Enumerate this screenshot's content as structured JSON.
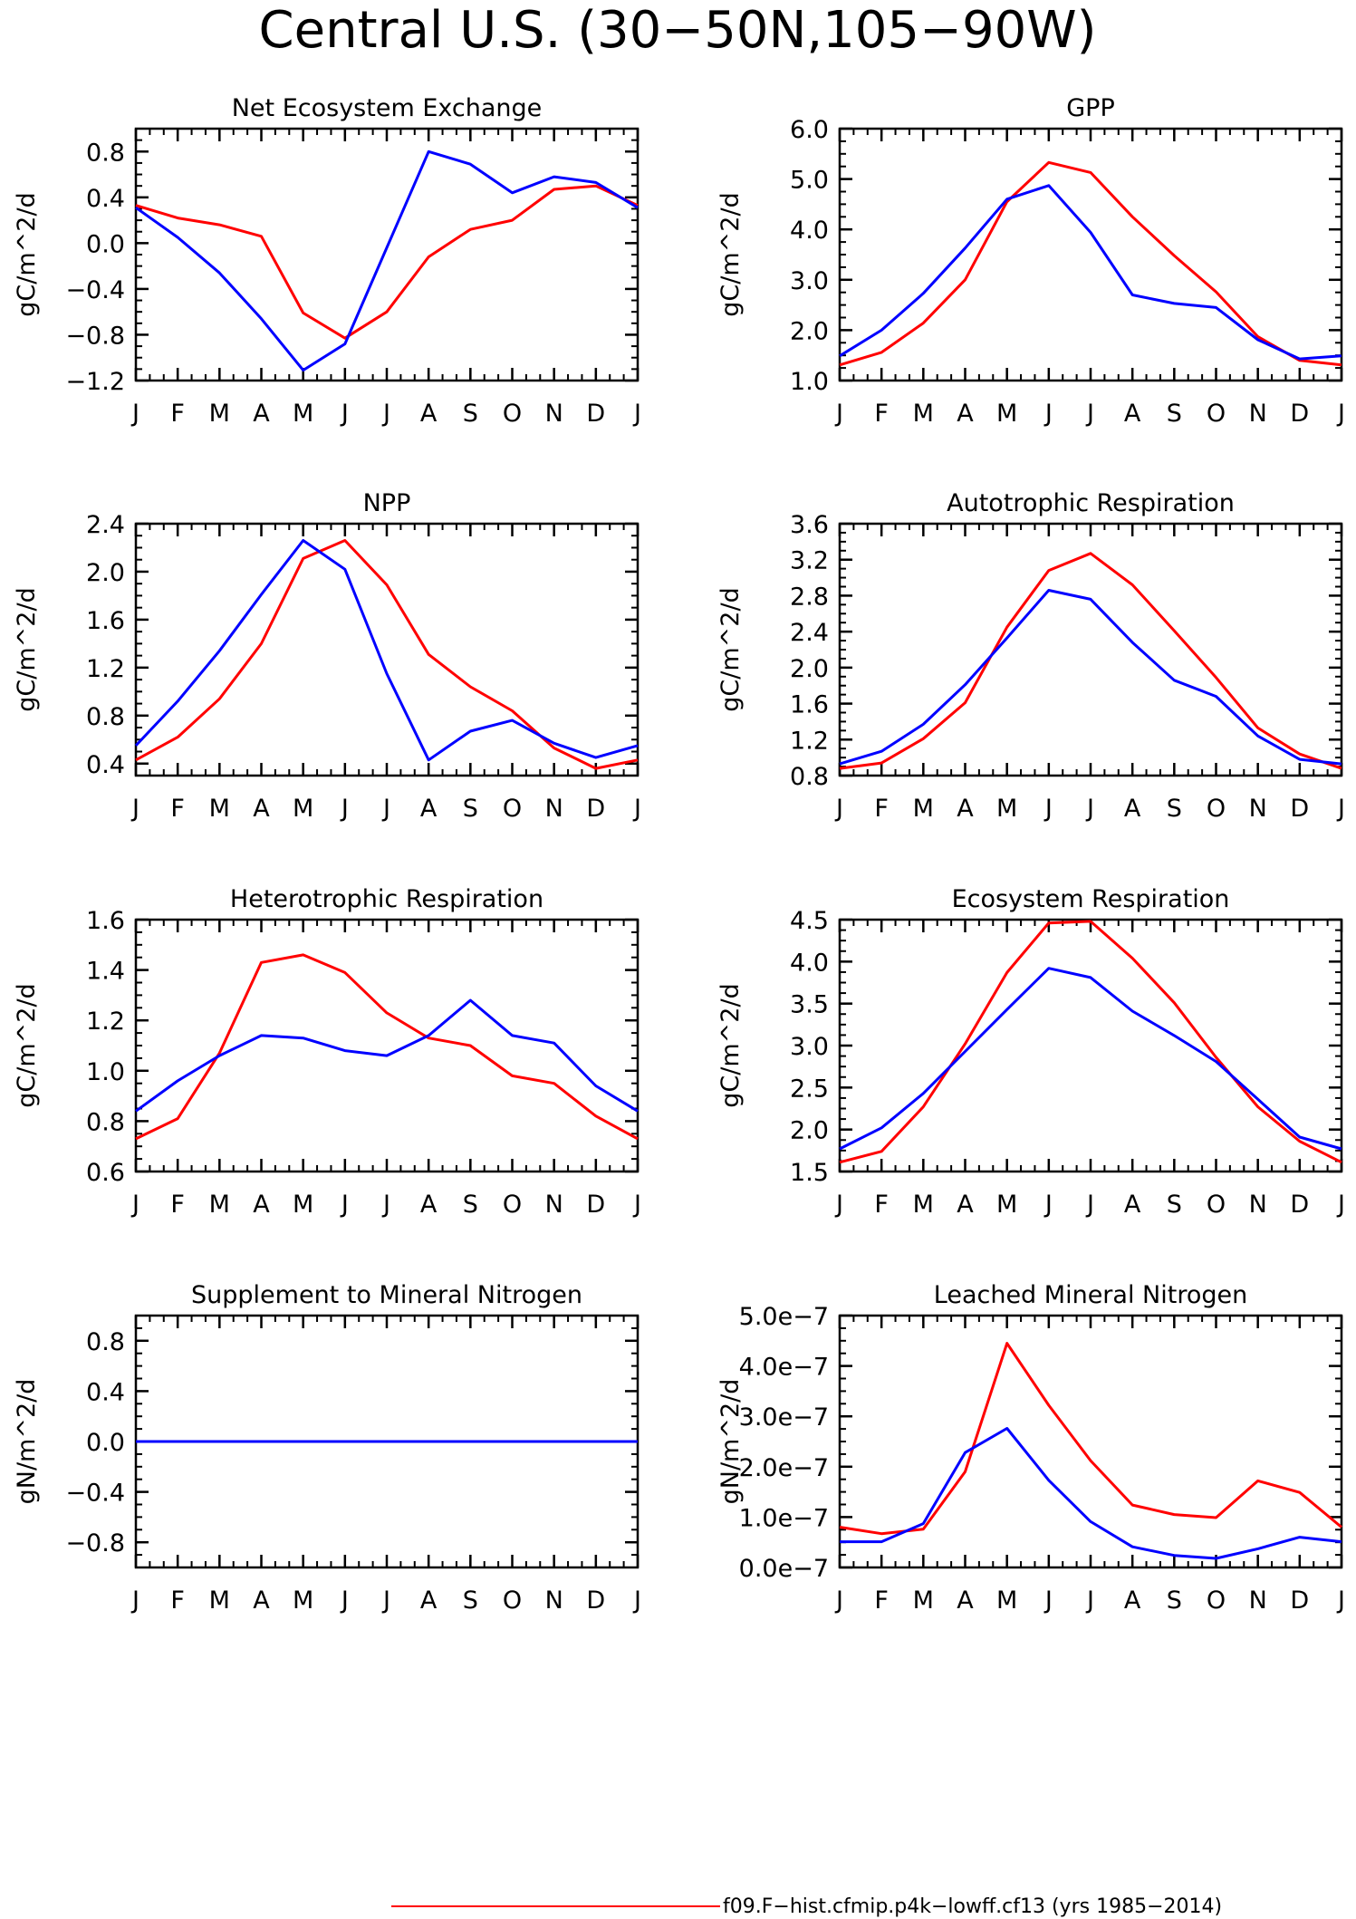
{
  "figure_title": "Central U.S. (30−50N,105−90W)",
  "legend": {
    "entries": [
      {
        "label": "f09.F−hist.cfmip.p4k−lowff.cf13 (yrs 1985−2014)",
        "color": "#ff0000"
      }
    ]
  },
  "colors": {
    "red": "#ff0000",
    "blue": "#0000ff"
  },
  "chart_data": [
    {
      "type": "line",
      "title": "Net Ecosystem Exchange",
      "ylabel": "gC/m^2/d",
      "categories": [
        "J",
        "F",
        "M",
        "A",
        "M",
        "J",
        "J",
        "A",
        "S",
        "O",
        "N",
        "D",
        "J"
      ],
      "ylim": [
        -1.2,
        1.0
      ],
      "yticks": [
        -1.2,
        -0.8,
        -0.4,
        0.0,
        0.4,
        0.8
      ],
      "ytick_labels": [
        "−1.2",
        "−0.8",
        "−0.4",
        "0.0",
        "0.4",
        "0.8"
      ],
      "series": [
        {
          "color": "#ff0000",
          "values": [
            0.33,
            0.22,
            0.16,
            0.06,
            -0.61,
            -0.83,
            -0.6,
            -0.12,
            0.12,
            0.2,
            0.47,
            0.5,
            0.33
          ]
        },
        {
          "color": "#0000ff",
          "values": [
            0.31,
            0.05,
            -0.26,
            -0.66,
            -1.11,
            -0.88,
            -0.04,
            0.8,
            0.69,
            0.44,
            0.58,
            0.53,
            0.31
          ]
        }
      ]
    },
    {
      "type": "line",
      "title": "GPP",
      "ylabel": "gC/m^2/d",
      "categories": [
        "J",
        "F",
        "M",
        "A",
        "M",
        "J",
        "J",
        "A",
        "S",
        "O",
        "N",
        "D",
        "J"
      ],
      "ylim": [
        1.0,
        6.0
      ],
      "yticks": [
        1.0,
        2.0,
        3.0,
        4.0,
        5.0,
        6.0
      ],
      "ytick_labels": [
        "1.0",
        "2.0",
        "3.0",
        "4.0",
        "5.0",
        "6.0"
      ],
      "series": [
        {
          "color": "#ff0000",
          "values": [
            1.31,
            1.56,
            2.14,
            3.0,
            4.55,
            5.33,
            5.13,
            4.25,
            3.48,
            2.76,
            1.87,
            1.4,
            1.31
          ]
        },
        {
          "color": "#0000ff",
          "values": [
            1.49,
            2.0,
            2.73,
            3.63,
            4.6,
            4.87,
            3.94,
            2.7,
            2.53,
            2.45,
            1.81,
            1.43,
            1.49
          ]
        }
      ]
    },
    {
      "type": "line",
      "title": "NPP",
      "ylabel": "gC/m^2/d",
      "categories": [
        "J",
        "F",
        "M",
        "A",
        "M",
        "J",
        "J",
        "A",
        "S",
        "O",
        "N",
        "D",
        "J"
      ],
      "ylim": [
        0.3,
        2.4
      ],
      "yticks": [
        0.4,
        0.8,
        1.2,
        1.6,
        2.0,
        2.4
      ],
      "ytick_labels": [
        "0.4",
        "0.8",
        "1.2",
        "1.6",
        "2.0",
        "2.4"
      ],
      "series": [
        {
          "color": "#ff0000",
          "values": [
            0.43,
            0.62,
            0.94,
            1.4,
            2.11,
            2.26,
            1.89,
            1.31,
            1.04,
            0.84,
            0.53,
            0.36,
            0.43
          ]
        },
        {
          "color": "#0000ff",
          "values": [
            0.55,
            0.92,
            1.34,
            1.81,
            2.26,
            2.02,
            1.15,
            0.43,
            0.67,
            0.76,
            0.57,
            0.45,
            0.55
          ]
        }
      ]
    },
    {
      "type": "line",
      "title": "Autotrophic Respiration",
      "ylabel": "gC/m^2/d",
      "categories": [
        "J",
        "F",
        "M",
        "A",
        "M",
        "J",
        "J",
        "A",
        "S",
        "O",
        "N",
        "D",
        "J"
      ],
      "ylim": [
        0.8,
        3.6
      ],
      "yticks": [
        0.8,
        1.2,
        1.6,
        2.0,
        2.4,
        2.8,
        3.2,
        3.6
      ],
      "ytick_labels": [
        "0.8",
        "1.2",
        "1.6",
        "2.0",
        "2.4",
        "2.8",
        "3.2",
        "3.6"
      ],
      "series": [
        {
          "color": "#ff0000",
          "values": [
            0.88,
            0.94,
            1.21,
            1.61,
            2.45,
            3.08,
            3.27,
            2.92,
            2.41,
            1.89,
            1.33,
            1.04,
            0.88
          ]
        },
        {
          "color": "#0000ff",
          "values": [
            0.93,
            1.07,
            1.37,
            1.81,
            2.33,
            2.86,
            2.76,
            2.28,
            1.86,
            1.68,
            1.24,
            0.98,
            0.93
          ]
        }
      ]
    },
    {
      "type": "line",
      "title": "Heterotrophic Respiration",
      "ylabel": "gC/m^2/d",
      "categories": [
        "J",
        "F",
        "M",
        "A",
        "M",
        "J",
        "J",
        "A",
        "S",
        "O",
        "N",
        "D",
        "J"
      ],
      "ylim": [
        0.6,
        1.6
      ],
      "yticks": [
        0.6,
        0.8,
        1.0,
        1.2,
        1.4,
        1.6
      ],
      "ytick_labels": [
        "0.6",
        "0.8",
        "1.0",
        "1.2",
        "1.4",
        "1.6"
      ],
      "series": [
        {
          "color": "#ff0000",
          "values": [
            0.73,
            0.81,
            1.07,
            1.43,
            1.46,
            1.39,
            1.23,
            1.13,
            1.1,
            0.98,
            0.95,
            0.82,
            0.73
          ]
        },
        {
          "color": "#0000ff",
          "values": [
            0.84,
            0.96,
            1.06,
            1.14,
            1.13,
            1.08,
            1.06,
            1.14,
            1.28,
            1.14,
            1.11,
            0.94,
            0.84
          ]
        }
      ]
    },
    {
      "type": "line",
      "title": "Ecosystem Respiration",
      "ylabel": "gC/m^2/d",
      "categories": [
        "J",
        "F",
        "M",
        "A",
        "M",
        "J",
        "J",
        "A",
        "S",
        "O",
        "N",
        "D",
        "J"
      ],
      "ylim": [
        1.5,
        4.5
      ],
      "yticks": [
        1.5,
        2.0,
        2.5,
        3.0,
        3.5,
        4.0,
        4.5
      ],
      "ytick_labels": [
        "1.5",
        "2.0",
        "2.5",
        "3.0",
        "3.5",
        "4.0",
        "4.5"
      ],
      "series": [
        {
          "color": "#ff0000",
          "values": [
            1.61,
            1.74,
            2.27,
            3.02,
            3.87,
            4.46,
            4.48,
            4.04,
            3.51,
            2.86,
            2.27,
            1.86,
            1.61
          ]
        },
        {
          "color": "#0000ff",
          "values": [
            1.77,
            2.02,
            2.43,
            2.93,
            3.43,
            3.92,
            3.81,
            3.41,
            3.12,
            2.81,
            2.36,
            1.91,
            1.77
          ]
        }
      ]
    },
    {
      "type": "line",
      "title": "Supplement to Mineral Nitrogen",
      "ylabel": "gN/m^2/d",
      "categories": [
        "J",
        "F",
        "M",
        "A",
        "M",
        "J",
        "J",
        "A",
        "S",
        "O",
        "N",
        "D",
        "J"
      ],
      "ylim": [
        -1.0,
        1.0
      ],
      "yticks": [
        -0.8,
        -0.4,
        0.0,
        0.4,
        0.8
      ],
      "ytick_labels": [
        "−0.8",
        "−0.4",
        "0.0",
        "0.4",
        "0.8"
      ],
      "series": [
        {
          "color": "#ff0000",
          "values": [
            0,
            0,
            0,
            0,
            0,
            0,
            0,
            0,
            0,
            0,
            0,
            0,
            0
          ]
        },
        {
          "color": "#0000ff",
          "values": [
            0,
            0,
            0,
            0,
            0,
            0,
            0,
            0,
            0,
            0,
            0,
            0,
            0
          ]
        }
      ]
    },
    {
      "type": "line",
      "title": "Leached Mineral Nitrogen",
      "ylabel": "gN/m^2/d",
      "categories": [
        "J",
        "F",
        "M",
        "A",
        "M",
        "J",
        "J",
        "A",
        "S",
        "O",
        "N",
        "D",
        "J"
      ],
      "ylim": [
        0,
        5e-07
      ],
      "yticks": [
        0,
        1e-07,
        2e-07,
        3e-07,
        4e-07,
        5e-07
      ],
      "ytick_labels": [
        "0.0e−7",
        "1.0e−7",
        "2.0e−7",
        "3.0e−7",
        "4.0e−7",
        "5.0e−7"
      ],
      "series": [
        {
          "color": "#ff0000",
          "values": [
            8e-08,
            6.7e-08,
            7.6e-08,
            1.9e-07,
            4.45e-07,
            3.22e-07,
            2.12e-07,
            1.24e-07,
            1.05e-07,
            9.9e-08,
            1.72e-07,
            1.49e-07,
            8e-08
          ]
        },
        {
          "color": "#0000ff",
          "values": [
            5.1e-08,
            5.1e-08,
            8.7e-08,
            2.28e-07,
            2.76e-07,
            1.73e-07,
            9.1e-08,
            4.1e-08,
            2.4e-08,
            1.8e-08,
            3.7e-08,
            6e-08,
            5.1e-08
          ]
        }
      ]
    }
  ]
}
